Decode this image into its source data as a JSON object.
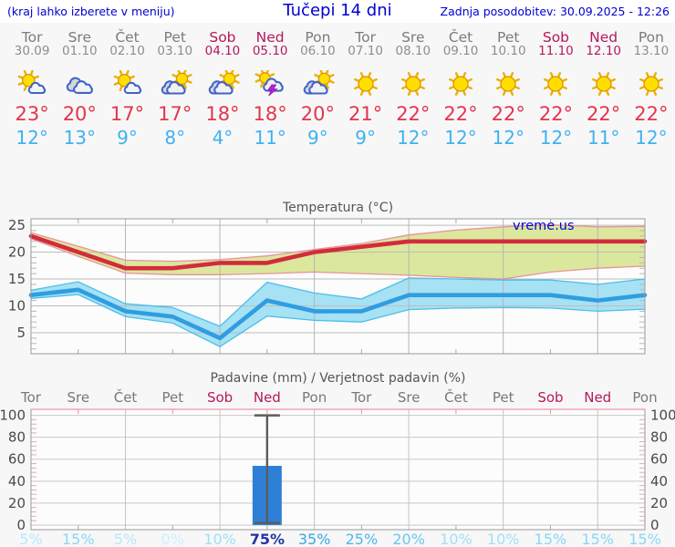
{
  "header": {
    "left_note": "(kraj lahko izberete v meniju)",
    "title": "Tučepi 14 dni",
    "last_update": "Zadnja posodobitev: 30.09.2025 - 12:26"
  },
  "colors": {
    "link_blue": "#0000d2",
    "weekend_red": "#b5185c",
    "tmax_red": "#e5344a",
    "tmin_blue": "#3fb2ef",
    "bar_blue": "#2e80d6"
  },
  "forecast": {
    "days": [
      {
        "name": "Tor",
        "date": "30.09",
        "weekend": false,
        "icon": "mostly-sunny",
        "tmax": "23°",
        "tmin": "12°"
      },
      {
        "name": "Sre",
        "date": "01.10",
        "weekend": false,
        "icon": "cloudy",
        "tmax": "20°",
        "tmin": "13°"
      },
      {
        "name": "Čet",
        "date": "02.10",
        "weekend": false,
        "icon": "mostly-sunny",
        "tmax": "17°",
        "tmin": "9°"
      },
      {
        "name": "Pet",
        "date": "03.10",
        "weekend": false,
        "icon": "partly-cloudy",
        "tmax": "17°",
        "tmin": "8°"
      },
      {
        "name": "Sob",
        "date": "04.10",
        "weekend": true,
        "icon": "partly-cloudy",
        "tmax": "18°",
        "tmin": "4°"
      },
      {
        "name": "Ned",
        "date": "05.10",
        "weekend": true,
        "icon": "thunderstorm",
        "tmax": "18°",
        "tmin": "11°"
      },
      {
        "name": "Pon",
        "date": "06.10",
        "weekend": false,
        "icon": "partly-cloudy",
        "tmax": "20°",
        "tmin": "9°"
      },
      {
        "name": "Tor",
        "date": "07.10",
        "weekend": false,
        "icon": "sunny",
        "tmax": "21°",
        "tmin": "9°"
      },
      {
        "name": "Sre",
        "date": "08.10",
        "weekend": false,
        "icon": "sunny",
        "tmax": "22°",
        "tmin": "12°"
      },
      {
        "name": "Čet",
        "date": "09.10",
        "weekend": false,
        "icon": "sunny",
        "tmax": "22°",
        "tmin": "12°"
      },
      {
        "name": "Pet",
        "date": "10.10",
        "weekend": false,
        "icon": "sunny",
        "tmax": "22°",
        "tmin": "12°"
      },
      {
        "name": "Sob",
        "date": "11.10",
        "weekend": true,
        "icon": "sunny",
        "tmax": "22°",
        "tmin": "12°"
      },
      {
        "name": "Ned",
        "date": "12.10",
        "weekend": true,
        "icon": "sunny",
        "tmax": "22°",
        "tmin": "11°"
      },
      {
        "name": "Pon",
        "date": "13.10",
        "weekend": false,
        "icon": "sunny",
        "tmax": "22°",
        "tmin": "12°"
      }
    ]
  },
  "chart_data": [
    {
      "type": "line",
      "title": "Temperatura (°C)",
      "watermark": "vreme.us",
      "ylim": [
        1,
        26.2
      ],
      "yticks": [
        5,
        10,
        15,
        20,
        25
      ],
      "x_count": 14,
      "series": [
        {
          "name": "max-temperature",
          "color": "#d22c3c",
          "band_color": "#dbe79d",
          "edge_color": "#e7939c",
          "values": [
            23,
            20,
            17,
            17,
            18,
            18,
            20,
            21,
            22,
            22,
            22,
            22,
            22,
            22
          ],
          "upper": [
            23.6,
            21.1,
            18.5,
            18.3,
            18.6,
            19.3,
            20.5,
            21.6,
            23.2,
            24.1,
            24.7,
            25.1,
            24.7,
            24.8
          ],
          "lower": [
            22.5,
            19.2,
            16.1,
            15.8,
            15.8,
            16.0,
            16.3,
            16.0,
            15.7,
            15.3,
            15.0,
            16.3,
            17.0,
            17.4
          ]
        },
        {
          "name": "min-temperature",
          "color": "#2f9de1",
          "band_color": "#a6e1f4",
          "edge_color": "#4bbfe9",
          "values": [
            12,
            13,
            9,
            8,
            4,
            11,
            9,
            9,
            12,
            12,
            12,
            12,
            11,
            12
          ],
          "upper": [
            12.9,
            14.5,
            10.4,
            9.7,
            6.2,
            14.4,
            12.4,
            11.3,
            15.2,
            15.0,
            14.8,
            14.8,
            14.0,
            15.0
          ],
          "lower": [
            11.4,
            12.1,
            8.0,
            6.8,
            2.4,
            8.1,
            7.3,
            7.0,
            9.3,
            9.6,
            9.7,
            9.6,
            9.0,
            9.4
          ]
        }
      ]
    },
    {
      "type": "bar",
      "title": "Padavine (mm) / Verjetnost padavin (%)",
      "categories": [
        "Tor",
        "Sre",
        "Čet",
        "Pet",
        "Sob",
        "Ned",
        "Pon",
        "Tor",
        "Sre",
        "Čet",
        "Pet",
        "Sob",
        "Ned",
        "Pon"
      ],
      "weekend": [
        false,
        false,
        false,
        false,
        true,
        true,
        false,
        false,
        false,
        false,
        false,
        true,
        true,
        false
      ],
      "ylim": [
        0,
        100
      ],
      "yticks": [
        0,
        20,
        40,
        60,
        80,
        100
      ],
      "values": [
        0,
        0,
        0,
        0,
        0,
        54,
        0,
        0,
        0,
        0,
        0,
        0,
        0,
        0
      ],
      "bar_color": "#2e80d6",
      "whisker": {
        "index": 5,
        "low": 2,
        "high": 100
      },
      "probabilities": [
        {
          "label": "5%",
          "color": "#b9e8f7",
          "bold": false
        },
        {
          "label": "15%",
          "color": "#8ad7f2",
          "bold": false
        },
        {
          "label": "5%",
          "color": "#b9e8f7",
          "bold": false
        },
        {
          "label": "0%",
          "color": "#cdeffa",
          "bold": false
        },
        {
          "label": "10%",
          "color": "#a1e0f5",
          "bold": false
        },
        {
          "label": "75%",
          "color": "#2334a4",
          "bold": true
        },
        {
          "label": "35%",
          "color": "#36a7e2",
          "bold": false
        },
        {
          "label": "25%",
          "color": "#4db9e8",
          "bold": false
        },
        {
          "label": "20%",
          "color": "#68c8ec",
          "bold": false
        },
        {
          "label": "10%",
          "color": "#a1e0f5",
          "bold": false
        },
        {
          "label": "10%",
          "color": "#a1e0f5",
          "bold": false
        },
        {
          "label": "15%",
          "color": "#8ad7f2",
          "bold": false
        },
        {
          "label": "15%",
          "color": "#8ad7f2",
          "bold": false
        },
        {
          "label": "15%",
          "color": "#8ad7f2",
          "bold": false
        }
      ]
    }
  ]
}
